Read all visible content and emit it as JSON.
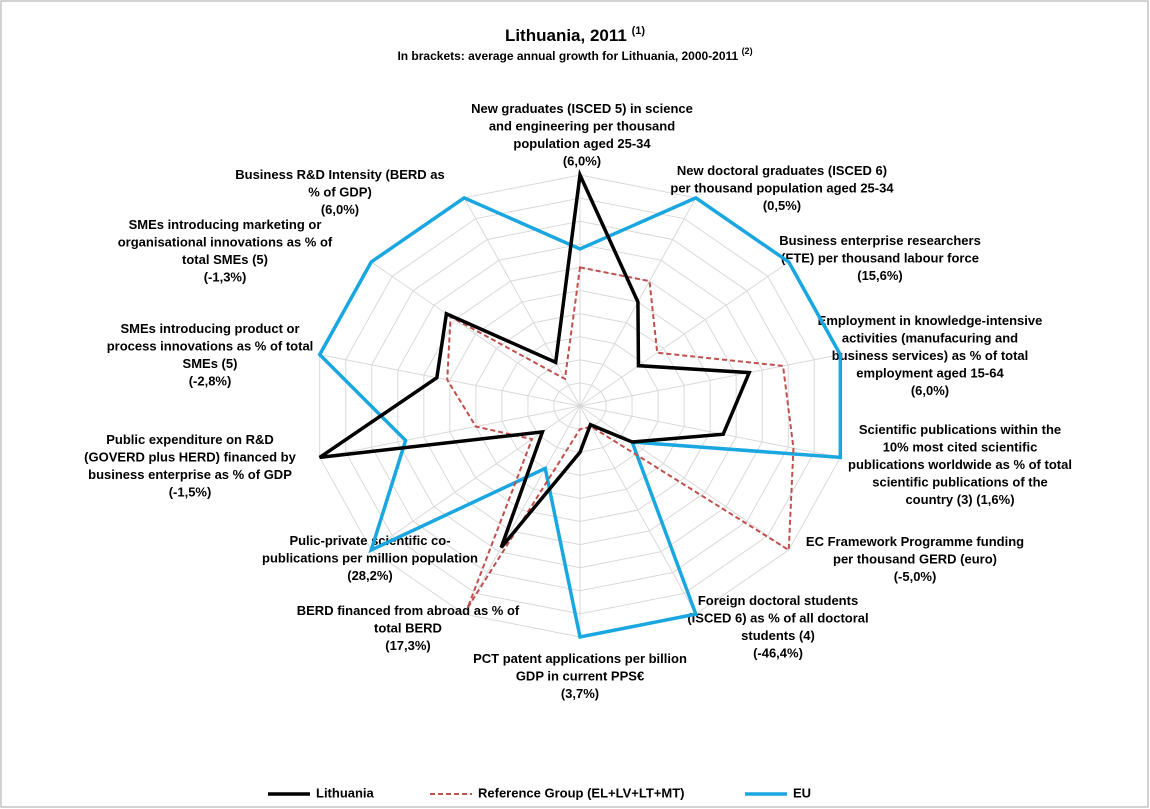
{
  "chart_data": {
    "type": "radar",
    "title": "Lithuania, 2011",
    "title_note": "(1)",
    "subtitle": "In brackets: average annual growth for Lithuania, 2000-2011",
    "subtitle_note": "(2)",
    "categories": [
      [
        "New graduates (ISCED 5) in science",
        "and engineering per thousand",
        "population aged 25-34",
        "(6,0%)"
      ],
      [
        "New doctoral graduates (ISCED 6)",
        "per thousand population aged 25-34",
        "(0,5%)"
      ],
      [
        "Business enterprise researchers",
        "(FTE) per thousand labour force",
        "(15,6%)"
      ],
      [
        "Employment in knowledge-intensive",
        "activities (manufacuring and",
        "business services) as % of total",
        "employment aged 15-64",
        "(6,0%)"
      ],
      [
        "Scientific publications within the",
        "10% most cited scientific",
        "publications worldwide as % of total",
        "scientific publications of the",
        "country (3) (1,6%)"
      ],
      [
        "EC Framework Programme funding",
        "per thousand GERD (euro)",
        "(-5,0%)"
      ],
      [
        "Foreign doctoral students",
        "(ISCED 6) as % of all doctoral",
        "students (4)",
        "(-46,4%)"
      ],
      [
        "PCT patent applications per billion",
        "GDP in current PPS€",
        "(3,7%)"
      ],
      [
        "BERD financed from abroad as % of",
        "total BERD",
        "(17,3%)"
      ],
      [
        "Pulic-private scientific co-",
        "publications per million population",
        "(28,2%)"
      ],
      [
        "Public expenditure on R&D",
        "(GOVERD plus HERD) financed by",
        "business enterprise as % of GDP",
        "(-1,5%)"
      ],
      [
        "SMEs introducing product or",
        "process innovations as % of total",
        "SMEs (5)",
        "(-2,8%)"
      ],
      [
        "SMEs introducing marketing or",
        "organisational innovations as % of",
        "total SMEs (5)",
        "(-1,3%)"
      ],
      [
        "Business R&D Intensity (BERD as",
        "% of GDP)",
        "(6,0%)"
      ]
    ],
    "series": [
      {
        "name": "Lithuania",
        "color": "#000000",
        "dash": false,
        "values": [
          1.0,
          0.5,
          0.28,
          0.65,
          0.55,
          0.25,
          0.09,
          0.2,
          0.68,
          0.18,
          1.0,
          0.55,
          0.64,
          0.21
        ]
      },
      {
        "name": "Reference Group (EL+LV+LT+MT)",
        "color": "#c0504d",
        "dash": true,
        "values": [
          0.6,
          0.6,
          0.37,
          0.78,
          0.82,
          1.0,
          0.1,
          0.1,
          0.97,
          0.23,
          0.4,
          0.51,
          0.62,
          0.13
        ]
      },
      {
        "name": "EU",
        "color": "#1aa7e0",
        "dash": false,
        "values": [
          0.68,
          1.0,
          1.0,
          1.0,
          1.0,
          0.25,
          1.0,
          1.0,
          0.3,
          1.0,
          0.67,
          1.0,
          1.0,
          1.0
        ]
      }
    ],
    "rlim": [
      0,
      1
    ],
    "rticks": [
      0.1,
      0.2,
      0.3,
      0.4,
      0.5,
      0.6,
      0.7,
      0.8,
      0.9,
      1.0
    ],
    "grid": true,
    "legend": "bottom"
  }
}
